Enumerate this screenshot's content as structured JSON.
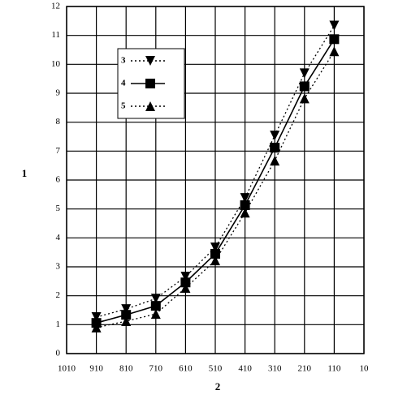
{
  "chart_data": {
    "type": "line",
    "x_label": "2",
    "y_label": "1",
    "x": [
      910,
      810,
      710,
      610,
      510,
      410,
      310,
      210,
      110
    ],
    "series": [
      {
        "name": "3",
        "color": "#000000",
        "linestyle": "dotted",
        "marker": "triangle-down",
        "values": [
          1.26,
          1.54,
          1.9,
          2.66,
          3.67,
          5.38,
          7.54,
          9.69,
          11.34
        ]
      },
      {
        "name": "4",
        "color": "#000000",
        "linestyle": "solid",
        "marker": "square",
        "values": [
          1.06,
          1.34,
          1.65,
          2.46,
          3.45,
          5.13,
          7.12,
          9.24,
          10.87
        ]
      },
      {
        "name": "5",
        "color": "#000000",
        "linestyle": "dotted",
        "marker": "triangle-up",
        "values": [
          0.9,
          1.12,
          1.37,
          2.27,
          3.22,
          4.87,
          6.67,
          8.82,
          10.45
        ]
      }
    ],
    "xlim": [
      1010,
      10
    ],
    "xticks": [
      1010,
      910,
      810,
      710,
      610,
      510,
      410,
      310,
      210,
      110,
      10
    ],
    "ylim": [
      0,
      12
    ],
    "yticks": [
      0,
      1,
      2,
      3,
      4,
      5,
      6,
      7,
      8,
      9,
      10,
      11,
      12
    ],
    "grid": true
  }
}
